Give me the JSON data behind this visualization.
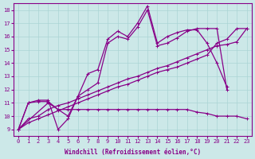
{
  "xlabel": "Windchill (Refroidissement éolien,°C)",
  "background_color": "#cce8e8",
  "line_color": "#880088",
  "xlim": [
    -0.5,
    23.5
  ],
  "ylim": [
    8.5,
    18.5
  ],
  "xticks": [
    0,
    1,
    2,
    3,
    4,
    5,
    6,
    7,
    8,
    9,
    10,
    11,
    12,
    13,
    14,
    15,
    16,
    17,
    18,
    19,
    20,
    21,
    22,
    23
  ],
  "yticks": [
    9,
    10,
    11,
    12,
    13,
    14,
    15,
    16,
    17,
    18
  ],
  "grid_color": "#aad4d4",
  "line1_x": [
    0,
    1,
    2,
    3,
    4,
    5,
    6,
    7,
    8,
    9,
    10,
    11,
    12,
    13,
    14,
    15,
    16,
    17,
    18,
    19,
    20,
    21
  ],
  "line1_y": [
    9.0,
    11.0,
    11.1,
    11.1,
    10.5,
    10.0,
    11.5,
    13.2,
    13.5,
    15.8,
    16.4,
    16.0,
    17.0,
    18.3,
    15.5,
    16.0,
    16.3,
    16.5,
    16.5,
    15.5,
    14.0,
    12.2
  ],
  "line2_x": [
    0,
    1,
    2,
    3,
    4,
    5,
    6,
    7,
    8,
    9,
    10,
    11,
    12,
    13,
    14,
    15,
    16,
    17,
    18,
    19,
    20,
    21
  ],
  "line2_y": [
    9.0,
    11.0,
    11.2,
    11.2,
    9.0,
    9.8,
    11.5,
    12.0,
    12.5,
    15.5,
    16.0,
    15.8,
    16.7,
    18.0,
    15.3,
    15.5,
    15.9,
    16.4,
    16.6,
    16.6,
    16.6,
    12.0
  ],
  "line3_x": [
    0,
    1,
    2,
    3,
    4,
    5,
    6,
    7,
    8,
    9,
    10,
    11,
    12,
    13,
    14,
    15,
    16,
    17,
    18,
    19,
    20,
    21,
    22,
    23
  ],
  "line3_y": [
    9.0,
    9.8,
    10.0,
    10.5,
    10.8,
    11.0,
    11.3,
    11.6,
    11.9,
    12.2,
    12.5,
    12.8,
    13.0,
    13.3,
    13.6,
    13.8,
    14.1,
    14.4,
    14.7,
    15.0,
    15.3,
    15.4,
    15.6,
    16.6
  ],
  "line4_x": [
    0,
    1,
    2,
    3,
    4,
    5,
    6,
    7,
    8,
    9,
    10,
    11,
    12,
    13,
    14,
    15,
    16,
    17,
    18,
    19,
    20,
    21,
    22,
    23
  ],
  "line4_y": [
    9.0,
    9.5,
    9.8,
    10.1,
    10.4,
    10.7,
    11.0,
    11.3,
    11.6,
    11.9,
    12.2,
    12.4,
    12.7,
    13.0,
    13.3,
    13.5,
    13.7,
    14.0,
    14.3,
    14.6,
    15.5,
    15.8,
    16.6,
    16.6
  ],
  "line5_x": [
    0,
    3,
    4,
    5,
    6,
    7,
    8,
    9,
    10,
    11,
    12,
    13,
    14,
    15,
    16,
    17,
    18,
    19,
    20,
    21,
    22,
    23
  ],
  "line5_y": [
    9.0,
    11.0,
    10.5,
    10.5,
    10.5,
    10.5,
    10.5,
    10.5,
    10.5,
    10.5,
    10.5,
    10.5,
    10.5,
    10.5,
    10.5,
    10.5,
    10.3,
    10.2,
    10.0,
    10.0,
    10.0,
    9.8
  ]
}
